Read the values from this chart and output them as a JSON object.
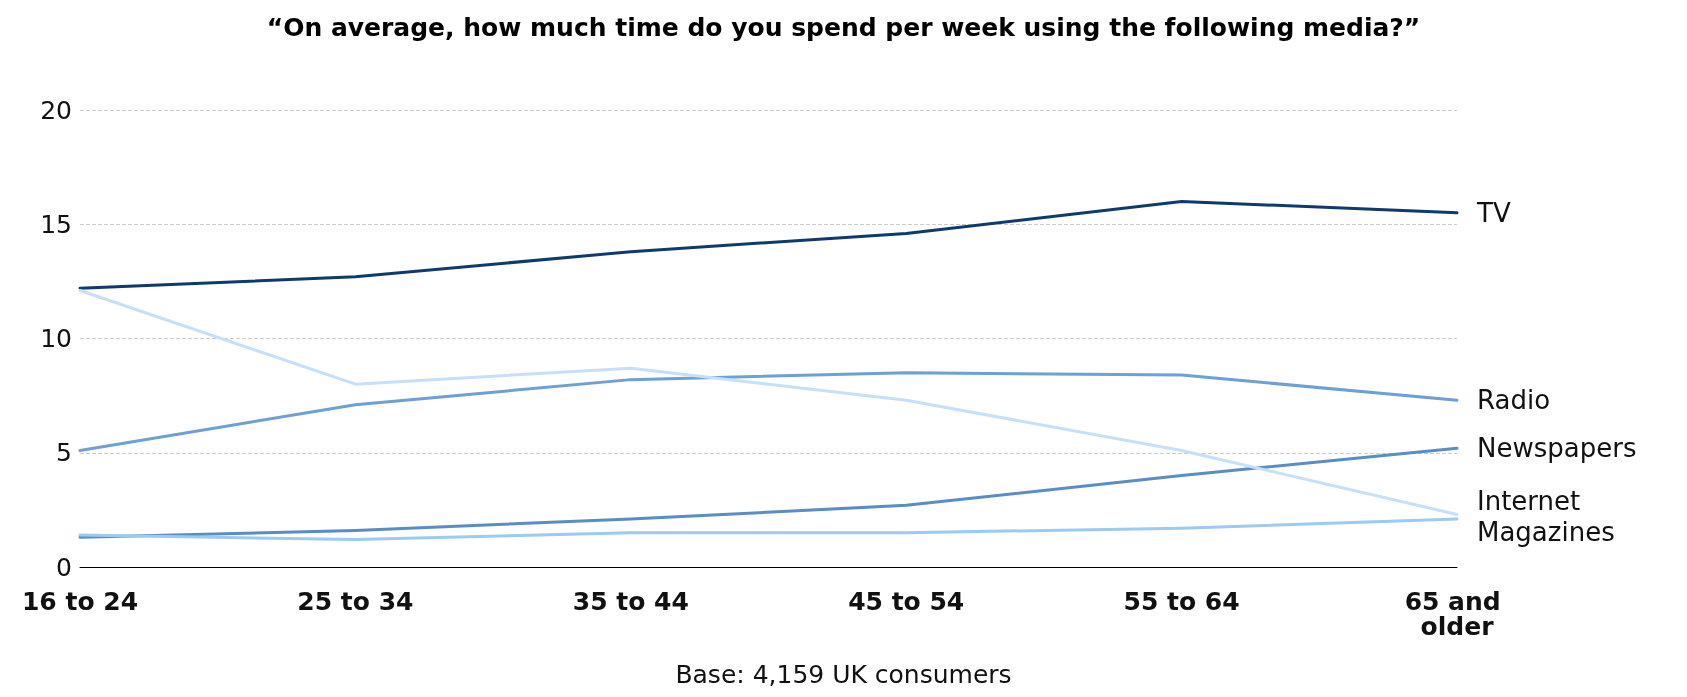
{
  "chart_data": {
    "type": "line",
    "title": "“On average, how much time do you spend per week using the following media?”",
    "categories": [
      "16 to 24",
      "25 to 34",
      "35 to 44",
      "45 to 54",
      "55 to 64",
      "65 and older"
    ],
    "series": [
      {
        "name": "TV",
        "color": "#0e3a6e",
        "values": [
          12.2,
          12.7,
          13.8,
          14.6,
          16.0,
          15.5
        ]
      },
      {
        "name": "Radio",
        "color": "#6e9fd6",
        "values": [
          5.1,
          7.1,
          8.2,
          8.5,
          8.4,
          7.3
        ]
      },
      {
        "name": "Newspapers",
        "color": "#5a8cc8",
        "values": [
          1.3,
          1.6,
          2.1,
          2.7,
          4.0,
          5.2
        ]
      },
      {
        "name": "Internet",
        "color": "#c6dffa",
        "values": [
          12.1,
          8.0,
          8.7,
          7.3,
          5.1,
          2.3
        ]
      },
      {
        "name": "Magazines",
        "color": "#9ccaf4",
        "values": [
          1.4,
          1.2,
          1.5,
          1.5,
          1.7,
          2.1
        ]
      }
    ],
    "ylim": [
      0,
      20
    ],
    "yticks": [
      0,
      5,
      10,
      15,
      20
    ],
    "grid": "y",
    "marker": "none",
    "line_style": "solid",
    "annotations": [
      "Base: 4,159 UK consumers"
    ]
  }
}
